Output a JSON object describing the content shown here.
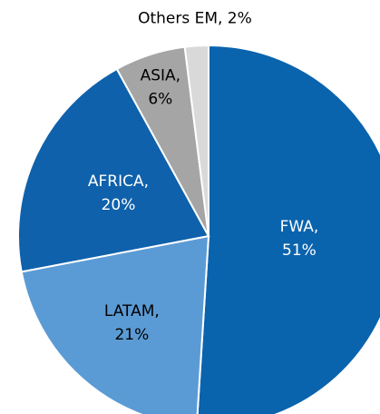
{
  "chart_data": {
    "type": "pie",
    "categories": [
      "FWA",
      "LATAM",
      "AFRICA",
      "ASIA",
      "Others EM"
    ],
    "values": [
      51,
      21,
      20,
      6,
      2
    ],
    "value_labels": [
      "FWA, 51%",
      "LATAM, 21%",
      "AFRICA, 20%",
      "ASIA, 6%",
      "Others EM, 2%"
    ],
    "colors": [
      "#0a63ad",
      "#5b9bd5",
      "#0f61ab",
      "#a5a5a5",
      "#d9d9d9"
    ]
  }
}
